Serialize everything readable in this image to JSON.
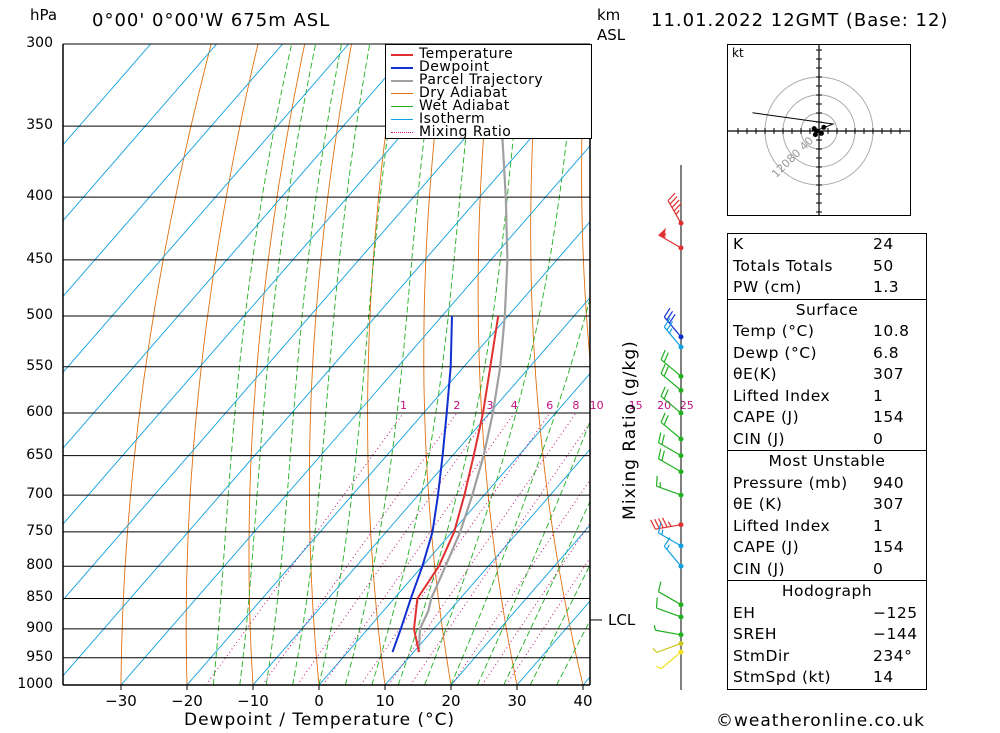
{
  "header": {
    "hpa_label": "hPa",
    "location": "0°00' 0°00'W 675m ASL",
    "km_label": "km",
    "asl_label": "ASL",
    "datetime": "11.01.2022 12GMT (Base: 12)"
  },
  "axes": {
    "x_title": "Dewpoint / Temperature (°C)",
    "mixing_title": "Mixing Ratio (g/kg)",
    "lcl_label": "LCL"
  },
  "legend": [
    {
      "label": "Temperature",
      "color": "#e03030"
    },
    {
      "label": "Dewpoint",
      "color": "#1030d0"
    },
    {
      "label": "Parcel Trajectory",
      "color": "#a0a0a0"
    },
    {
      "label": "Dry Adiabat",
      "color": "#e07010"
    },
    {
      "label": "Wet Adiabat",
      "color": "#20b020"
    },
    {
      "label": "Isotherm",
      "color": "#10a0e0"
    },
    {
      "label": "Mixing Ratio",
      "color": "#c01080"
    }
  ],
  "colors": {
    "temperature": "#e03030",
    "dewpoint": "#1030d0",
    "parcel": "#a0a0a0",
    "dry_adiabat": "#e07010",
    "wet_adiabat": "#20b020",
    "isotherm": "#10a0e0",
    "mixing_ratio": "#c01080"
  },
  "chart_data": {
    "type": "line",
    "pressure_levels": [
      300,
      350,
      400,
      450,
      500,
      550,
      600,
      650,
      700,
      750,
      800,
      850,
      900,
      950,
      1000
    ],
    "pressure_tick_labels": [
      "300",
      "350",
      "400",
      "450",
      "500",
      "550",
      "600",
      "650",
      "700",
      "750",
      "800",
      "850",
      "900",
      "950",
      "1000"
    ],
    "temperature_ticks": [
      -30,
      -20,
      -10,
      0,
      10,
      20,
      30,
      40
    ],
    "temperature_tick_labels": [
      "−30",
      "−20",
      "−10",
      "0",
      "10",
      "20",
      "30",
      "40"
    ],
    "xlim": [
      -40,
      40
    ],
    "ylim": [
      1000,
      300
    ],
    "y_scale": "log",
    "mixing_ratio_labels": [
      "1",
      "2",
      "3",
      "4",
      "6",
      "8",
      "10",
      "15",
      "20",
      "25"
    ],
    "mixing_ratio_values": [
      1,
      2,
      3,
      4,
      6,
      8,
      10,
      15,
      20,
      25
    ],
    "series": [
      {
        "name": "Temperature",
        "p": [
          940,
          900,
          850,
          800,
          750,
          700,
          650,
          600,
          550,
          500
        ],
        "t": [
          10.8,
          7.0,
          3.5,
          2.5,
          0.3,
          -3.0,
          -6.8,
          -11.0,
          -16.0,
          -21.5
        ]
      },
      {
        "name": "Dewpoint",
        "p": [
          940,
          900,
          850,
          800,
          750,
          700,
          650,
          600,
          550,
          500
        ],
        "t": [
          6.8,
          5.0,
          2.5,
          0.0,
          -3.0,
          -7.0,
          -11.5,
          -16.5,
          -22.0,
          -28.5
        ]
      },
      {
        "name": "Parcel Trajectory",
        "p": [
          940,
          900,
          870,
          850,
          800,
          750,
          700,
          650,
          600,
          550,
          500,
          450,
          400,
          350,
          305
        ],
        "t": [
          10.8,
          7.9,
          6.8,
          5.6,
          3.5,
          1.2,
          -1.8,
          -5.3,
          -9.5,
          -14.5,
          -20.5,
          -27.5,
          -36.0,
          -46.0,
          -57.0
        ]
      }
    ],
    "lcl_pressure": 885,
    "station_pressure": 940
  },
  "wind_profile": [
    {
      "p": 420,
      "dir": 330,
      "kt": 45,
      "color": "#e03030"
    },
    {
      "p": 440,
      "dir": 300,
      "kt": 55,
      "color": "#e03030"
    },
    {
      "p": 520,
      "dir": 320,
      "kt": 30,
      "color": "#1030d0"
    },
    {
      "p": 530,
      "dir": 320,
      "kt": 25,
      "color": "#10a0e0"
    },
    {
      "p": 560,
      "dir": 310,
      "kt": 20,
      "color": "#20b020"
    },
    {
      "p": 575,
      "dir": 310,
      "kt": 20,
      "color": "#20b020"
    },
    {
      "p": 600,
      "dir": 310,
      "kt": 20,
      "color": "#20b020"
    },
    {
      "p": 630,
      "dir": 310,
      "kt": 20,
      "color": "#20b020"
    },
    {
      "p": 650,
      "dir": 300,
      "kt": 20,
      "color": "#20b020"
    },
    {
      "p": 670,
      "dir": 300,
      "kt": 20,
      "color": "#20b020"
    },
    {
      "p": 700,
      "dir": 290,
      "kt": 15,
      "color": "#20b020"
    },
    {
      "p": 740,
      "dir": 260,
      "kt": 45,
      "color": "#e03030"
    },
    {
      "p": 770,
      "dir": 300,
      "kt": 15,
      "color": "#10a0e0"
    },
    {
      "p": 800,
      "dir": 320,
      "kt": 15,
      "color": "#10a0e0"
    },
    {
      "p": 860,
      "dir": 300,
      "kt": 10,
      "color": "#20b020"
    },
    {
      "p": 880,
      "dir": 290,
      "kt": 10,
      "color": "#20b020"
    },
    {
      "p": 910,
      "dir": 280,
      "kt": 5,
      "color": "#20b020"
    },
    {
      "p": 925,
      "dir": 250,
      "kt": 5,
      "color": "#c8c820"
    },
    {
      "p": 940,
      "dir": 230,
      "kt": 5,
      "color": "#f0e020"
    }
  ],
  "hodograph": {
    "unit_label": "kt",
    "ring_labels": [
      "40",
      "80",
      "120"
    ],
    "ring_values": [
      40,
      80,
      120
    ],
    "points": [
      [
        -4,
        2
      ],
      [
        -2,
        0
      ],
      [
        2,
        -2
      ],
      [
        4,
        3
      ],
      [
        -3,
        -3
      ]
    ],
    "trace": [
      [
        -5,
        0
      ],
      [
        10,
        6
      ],
      [
        20,
        10
      ],
      [
        -95,
        26
      ]
    ]
  },
  "indices_table": {
    "top": [
      {
        "label": "K",
        "value": "24"
      },
      {
        "label": "Totals Totals",
        "value": "50"
      },
      {
        "label": "PW (cm)",
        "value": "1.3"
      }
    ],
    "surface_title": "Surface",
    "surface": [
      {
        "label": "Temp (°C)",
        "value": "10.8"
      },
      {
        "label": "Dewp (°C)",
        "value": "6.8"
      },
      {
        "label": "θE(K)",
        "value": "307"
      },
      {
        "label": "Lifted Index",
        "value": "1"
      },
      {
        "label": "CAPE (J)",
        "value": "154"
      },
      {
        "label": "CIN (J)",
        "value": "0"
      }
    ],
    "unstable_title": "Most Unstable",
    "unstable": [
      {
        "label": "Pressure (mb)",
        "value": "940"
      },
      {
        "label": "θE (K)",
        "value": "307"
      },
      {
        "label": "Lifted Index",
        "value": "1"
      },
      {
        "label": "CAPE (J)",
        "value": "154"
      },
      {
        "label": "CIN (J)",
        "value": "0"
      }
    ],
    "hodo_title": "Hodograph",
    "hodo": [
      {
        "label": "EH",
        "value": "−125"
      },
      {
        "label": "SREH",
        "value": "−144"
      },
      {
        "label": "StmDir",
        "value": "234°"
      },
      {
        "label": "StmSpd (kt)",
        "value": "14"
      }
    ]
  },
  "copyright": "©weatheronline.co.uk"
}
